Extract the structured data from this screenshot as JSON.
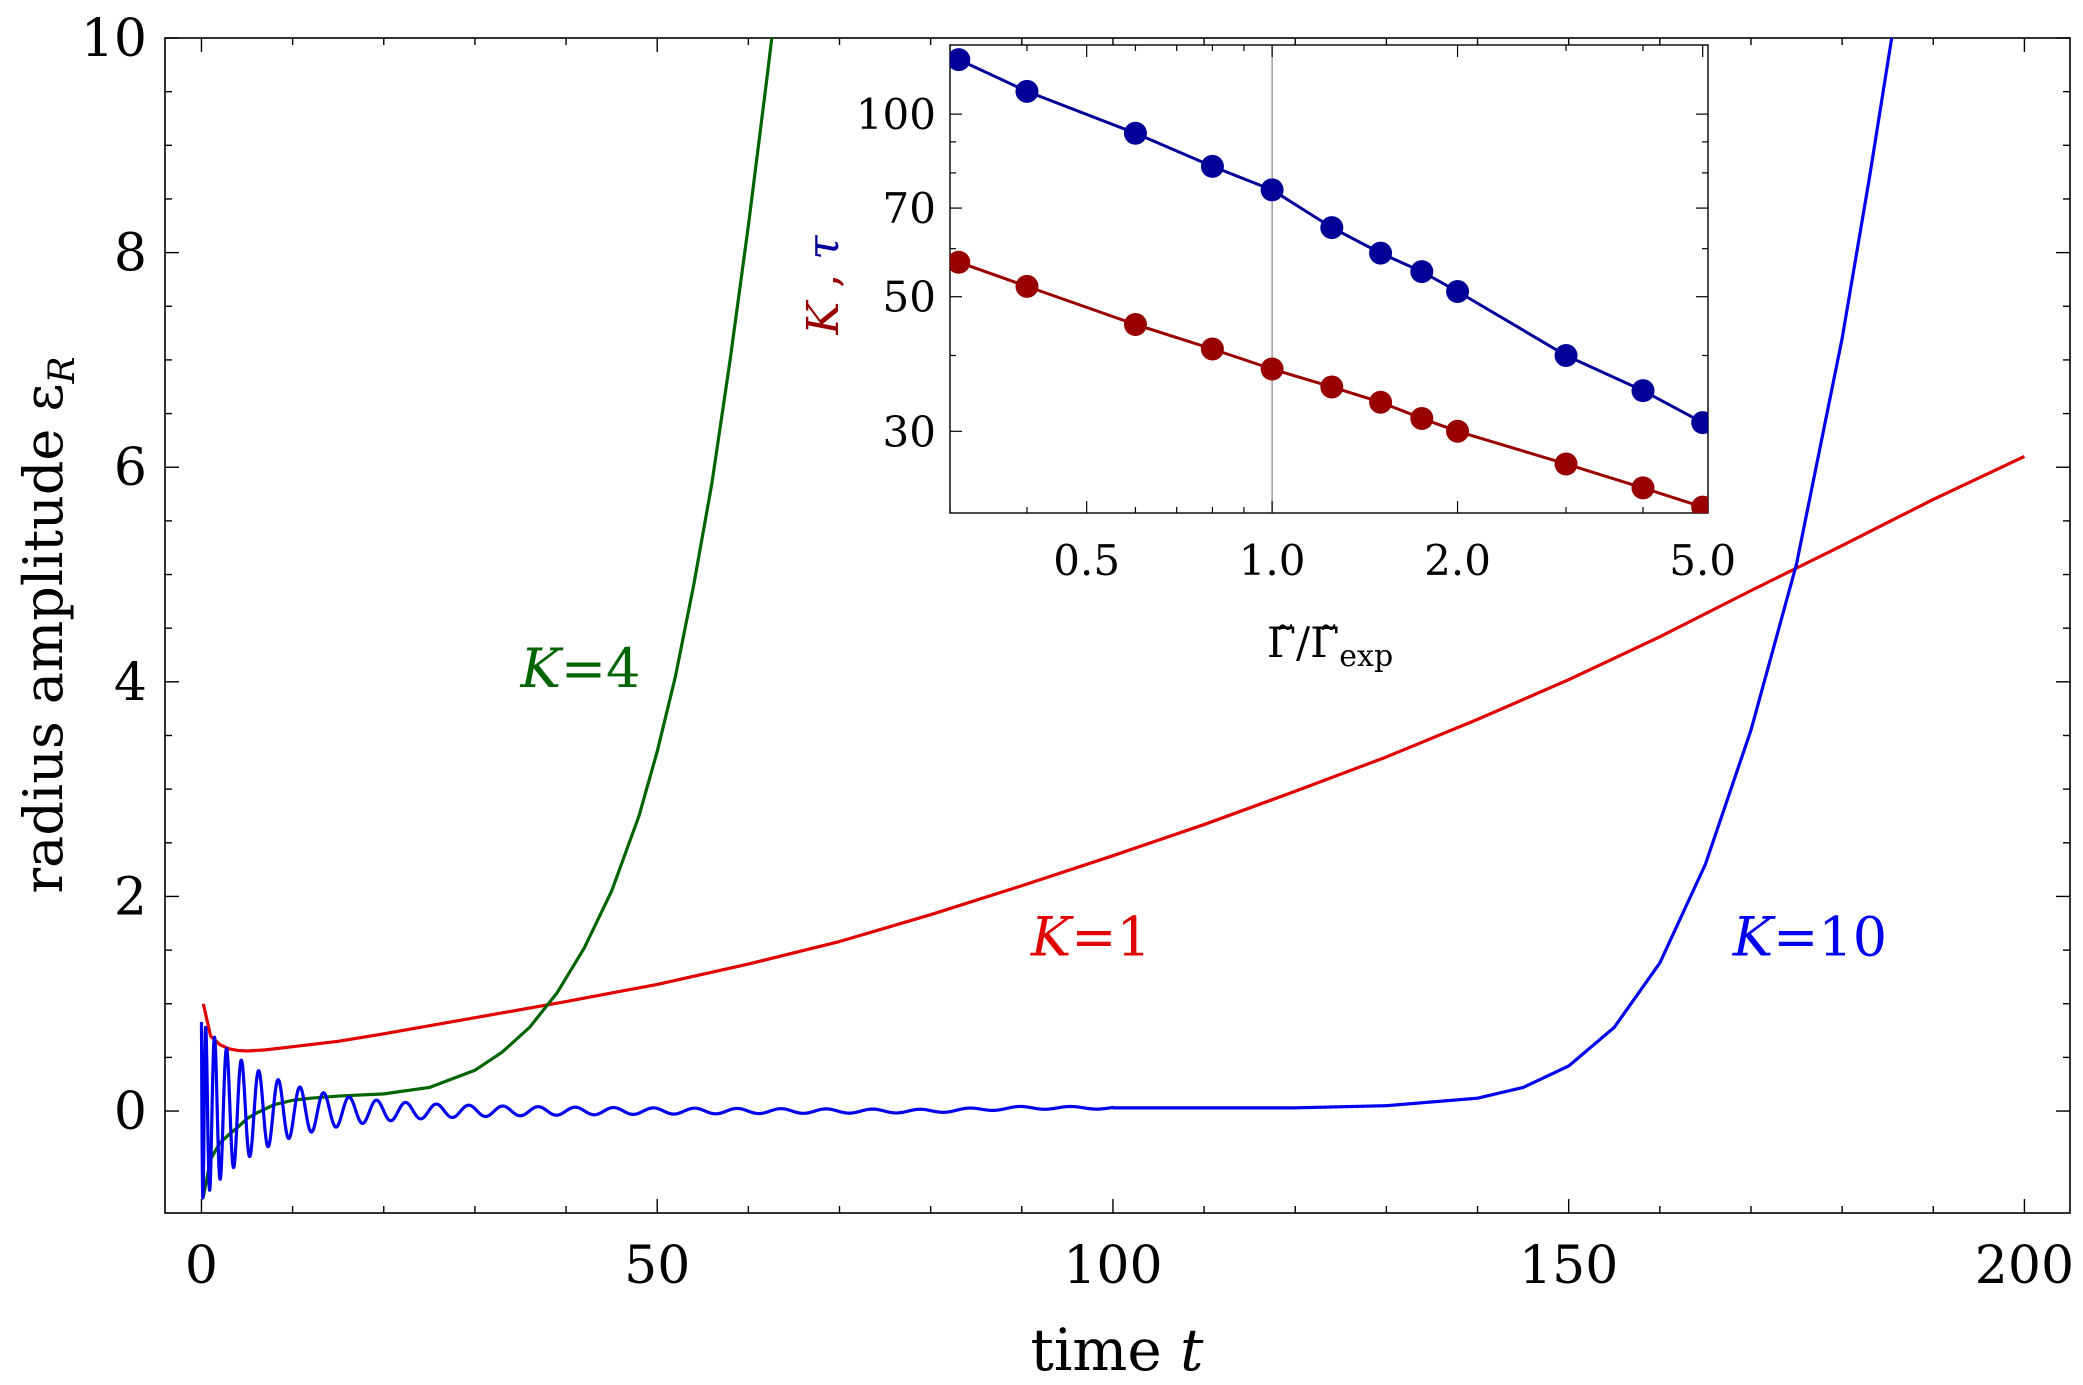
{
  "chart_data": [
    {
      "type": "line",
      "xlabel": "time",
      "xlabel_var": "t",
      "ylabel": "radius amplitude",
      "ylabel_var": "ε",
      "ylabel_sub": "R",
      "xlim": [
        -4,
        205
      ],
      "ylim": [
        -0.95,
        10
      ],
      "xticks": [
        0,
        50,
        100,
        150,
        200
      ],
      "yticks": [
        0,
        2,
        4,
        6,
        8,
        10
      ],
      "series": [
        {
          "name": "K=1",
          "label_var": "K",
          "label_value": "=1",
          "color": "#e00000",
          "label_at": [
            91,
            1.45
          ],
          "x": [
            0.2,
            1,
            2,
            3,
            4,
            5,
            7,
            10,
            15,
            20,
            30,
            40,
            50,
            60,
            70,
            80,
            90,
            100,
            110,
            120,
            130,
            140,
            150,
            160,
            170,
            180,
            190,
            200
          ],
          "y": [
            1.0,
            0.7,
            0.62,
            0.58,
            0.565,
            0.56,
            0.57,
            0.6,
            0.65,
            0.72,
            0.87,
            1.02,
            1.18,
            1.37,
            1.58,
            1.83,
            2.1,
            2.38,
            2.67,
            2.98,
            3.3,
            3.65,
            4.02,
            4.42,
            4.85,
            5.27,
            5.7,
            6.1
          ]
        },
        {
          "name": "K=4",
          "label_var": "K",
          "label_value": "=4",
          "color": "#006400",
          "label_at": [
            35,
            3.95
          ],
          "x": [
            0.2,
            1,
            2,
            3,
            4,
            5,
            6,
            8,
            10,
            12,
            15,
            20,
            25,
            30,
            33,
            36,
            39,
            42,
            45,
            48,
            50,
            52,
            54,
            56,
            58,
            60,
            62,
            63
          ],
          "y": [
            -0.8,
            -0.45,
            -0.3,
            -0.22,
            -0.15,
            -0.07,
            -0.02,
            0.06,
            0.1,
            0.12,
            0.14,
            0.16,
            0.22,
            0.38,
            0.55,
            0.78,
            1.1,
            1.52,
            2.05,
            2.75,
            3.35,
            4.05,
            4.9,
            5.85,
            7.0,
            8.25,
            9.6,
            10.3
          ]
        },
        {
          "name": "K=10",
          "label_var": "K",
          "label_value": "=10",
          "color": "#0000ee",
          "label_at": [
            168,
            1.45
          ],
          "x": [
            0,
            5,
            10,
            20,
            30,
            40,
            50,
            60,
            70,
            80,
            90,
            100,
            110,
            120,
            130,
            140,
            145,
            150,
            155,
            160,
            165,
            170,
            175,
            180,
            183,
            186
          ],
          "y": [
            0,
            0,
            0,
            0,
            0,
            0,
            0,
            0,
            0,
            0,
            0.03,
            0.03,
            0.03,
            0.03,
            0.05,
            0.12,
            0.22,
            0.42,
            0.78,
            1.38,
            2.3,
            3.55,
            5.1,
            7.2,
            8.7,
            10.3
          ]
        }
      ]
    },
    {
      "type": "scatter",
      "scale": "log-log",
      "ylabel": "K , τ",
      "ylabel_k": "K",
      "ylabel_sep": " , ",
      "ylabel_tau": "τ",
      "xlabel": "Γ̃/Γ̃",
      "xlabel_sub": "exp",
      "xlim": [
        0.3,
        5.1
      ],
      "ylim": [
        22,
        130
      ],
      "xticks": [
        "0.5",
        "1.0",
        "2.0",
        "5.0"
      ],
      "xtick_values": [
        0.5,
        1.0,
        2.0,
        5.0
      ],
      "yticks": [
        "30",
        "50",
        "70",
        "100"
      ],
      "ytick_values": [
        30,
        50,
        70,
        100
      ],
      "vline_x": 1.0,
      "series": [
        {
          "name": "τ",
          "color": "#000099",
          "x": [
            0.31,
            0.4,
            0.6,
            0.8,
            1.0,
            1.25,
            1.5,
            1.75,
            2.0,
            3.0,
            4.0,
            5.0
          ],
          "y": [
            123,
            109,
            93,
            82,
            75,
            65,
            59,
            55,
            51,
            40,
            35,
            31
          ]
        },
        {
          "name": "K",
          "color": "#990000",
          "x": [
            0.31,
            0.4,
            0.6,
            0.8,
            1.0,
            1.25,
            1.5,
            1.75,
            2.0,
            3.0,
            4.0,
            5.0
          ],
          "y": [
            57,
            52,
            45,
            41,
            38,
            35.5,
            33.5,
            31.5,
            30,
            26.5,
            24.2,
            22.5
          ]
        }
      ]
    }
  ]
}
